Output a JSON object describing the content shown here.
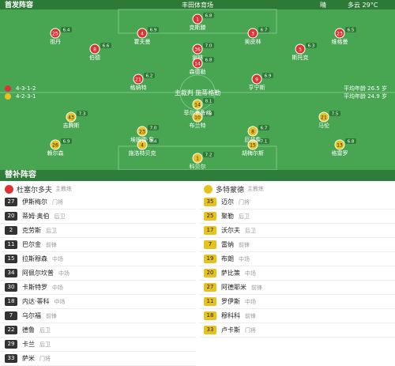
{
  "header": {
    "title": "首发阵容",
    "venue": "丰田体育场",
    "weather": "晴",
    "temp": "多云 29°C"
  },
  "referee": "主裁判 施蒂格勒",
  "home": {
    "name": "杜塞尔多夫",
    "coach": "主教练",
    "formation": "4-3-1-2",
    "stats": "平均年龄 26.5 岁",
    "players": [
      {
        "number": "1",
        "name": "克斯滕",
        "rating": "6.8"
      },
      {
        "number": "25",
        "name": "祖丹",
        "rating": "6.4"
      },
      {
        "number": "4",
        "name": "霍夫曼",
        "rating": "6.9"
      },
      {
        "number": "3",
        "name": "奥皮林",
        "rating": "6.7"
      },
      {
        "number": "23",
        "name": "维格曼",
        "rating": "6.5"
      },
      {
        "number": "8",
        "name": "伯德",
        "rating": "6.6"
      },
      {
        "number": "36",
        "name": "谢林",
        "rating": "7.0"
      },
      {
        "number": "5",
        "name": "斯托克",
        "rating": "6.3"
      },
      {
        "number": "14",
        "name": "森德勒",
        "rating": "6.8"
      },
      {
        "number": "21",
        "name": "格纳特",
        "rating": "6.2"
      },
      {
        "number": "9",
        "name": "亨宁斯",
        "rating": "6.9"
      }
    ]
  },
  "away": {
    "name": "多特蒙德",
    "coach": "主教练",
    "formation": "4-2-3-1",
    "stats": "平均年龄 24.9 岁",
    "players": [
      {
        "number": "1",
        "name": "科贝尔",
        "rating": "7.2"
      },
      {
        "number": "26",
        "name": "赖尔森",
        "rating": "6.9"
      },
      {
        "number": "4",
        "name": "施洛特贝克",
        "rating": "7.4"
      },
      {
        "number": "15",
        "name": "胡梅尔斯",
        "rating": "7.1"
      },
      {
        "number": "13",
        "name": "格雷罗",
        "rating": "6.8"
      },
      {
        "number": "23",
        "name": "埃姆雷·詹",
        "rating": "7.0"
      },
      {
        "number": "8",
        "name": "厄兹詹",
        "rating": "6.7"
      },
      {
        "number": "43",
        "name": "吉腾斯",
        "rating": "7.3"
      },
      {
        "number": "10",
        "name": "布兰特",
        "rating": "7.8"
      },
      {
        "number": "21",
        "name": "马伦",
        "rating": "7.5"
      },
      {
        "number": "14",
        "name": "菲尔克鲁格",
        "rating": "8.1"
      }
    ]
  },
  "subs_title": "替补阵容",
  "home_subs": [
    {
      "number": "27",
      "name": "伊斯梅尔",
      "pos": "门将"
    },
    {
      "number": "20",
      "name": "蒂姆·奥伯",
      "pos": "后卫"
    },
    {
      "number": "2",
      "name": "克劳斯",
      "pos": "后卫"
    },
    {
      "number": "11",
      "name": "巴尔金",
      "pos": "前锋"
    },
    {
      "number": "15",
      "name": "拉斯穆森",
      "pos": "中场"
    },
    {
      "number": "34",
      "name": "阿佩尔坎普",
      "pos": "中场"
    },
    {
      "number": "30",
      "name": "卡斯特罗",
      "pos": "中场"
    },
    {
      "number": "18",
      "name": "内达·蒂科",
      "pos": "中场"
    },
    {
      "number": "7",
      "name": "乌尔福",
      "pos": "前锋"
    },
    {
      "number": "22",
      "name": "德鲁",
      "pos": "后卫"
    },
    {
      "number": "29",
      "name": "卡兰",
      "pos": "后卫"
    },
    {
      "number": "33",
      "name": "萨米",
      "pos": "门将"
    }
  ],
  "away_subs": [
    {
      "number": "35",
      "name": "迈尔",
      "pos": "门将"
    },
    {
      "number": "25",
      "name": "聚勒",
      "pos": "后卫"
    },
    {
      "number": "17",
      "name": "沃尔夫",
      "pos": "后卫"
    },
    {
      "number": "7",
      "name": "雷纳",
      "pos": "前锋"
    },
    {
      "number": "19",
      "name": "布朗",
      "pos": "中场"
    },
    {
      "number": "20",
      "name": "萨比策",
      "pos": "中场"
    },
    {
      "number": "27",
      "name": "阿德耶米",
      "pos": "前锋"
    },
    {
      "number": "11",
      "name": "罗伊斯",
      "pos": "中场"
    },
    {
      "number": "18",
      "name": "穆科科",
      "pos": "前锋"
    },
    {
      "number": "33",
      "name": "卢卡斯",
      "pos": "门将"
    }
  ]
}
